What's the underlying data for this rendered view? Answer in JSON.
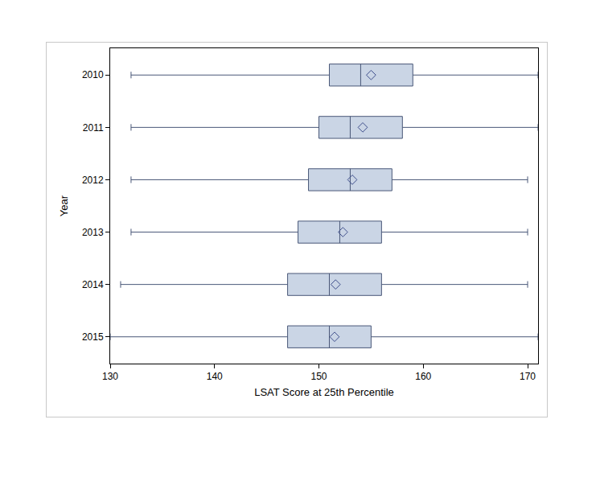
{
  "chart_data": {
    "type": "box",
    "orientation": "horizontal",
    "x_label": "LSAT Score at 25th Percentile",
    "y_label": "Year",
    "categories": [
      "2010",
      "2011",
      "2012",
      "2013",
      "2014",
      "2015"
    ],
    "min": [
      132,
      132,
      132,
      132,
      131,
      130
    ],
    "q1": [
      151,
      150,
      149,
      148,
      147,
      147
    ],
    "median": [
      154,
      153,
      153,
      152,
      151,
      151
    ],
    "q3": [
      159,
      158,
      157,
      156,
      156,
      155
    ],
    "max": [
      171,
      171,
      170,
      170,
      170,
      171
    ],
    "mean": [
      155,
      154.2,
      153.2,
      152.3,
      151.6,
      151.5
    ],
    "color": "#cad5e5",
    "marker": "diamond-open",
    "xlim": [
      130,
      171
    ],
    "xticks": [
      130,
      140,
      150,
      160,
      170
    ],
    "grid": false
  }
}
